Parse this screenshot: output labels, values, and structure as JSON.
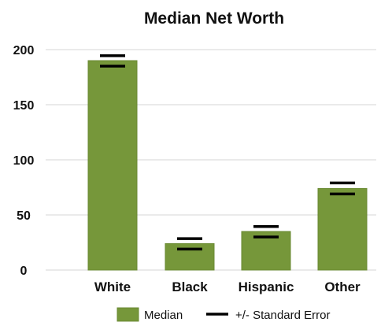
{
  "chart_data": {
    "type": "bar",
    "title": "Median Net Worth",
    "categories": [
      "White",
      "Black",
      "Hispanic",
      "Other"
    ],
    "series": [
      {
        "name": "Median",
        "values": [
          190,
          24,
          35,
          74
        ],
        "color": "#76973a"
      }
    ],
    "error_bars": {
      "name": "+/- Standard Error",
      "upper": [
        194.5,
        28.5,
        39.5,
        79
      ],
      "lower": [
        185,
        19,
        30,
        69
      ]
    },
    "yticks": [
      0,
      50,
      100,
      150,
      200
    ],
    "ylim": [
      0,
      200
    ],
    "xlabel": "",
    "ylabel": "",
    "grid": true,
    "legend": "bottom"
  },
  "colors": {
    "bar": "#76973a",
    "bar_edge": "#6a8a33",
    "error": "#000000",
    "grid": "#d4d4d4"
  }
}
